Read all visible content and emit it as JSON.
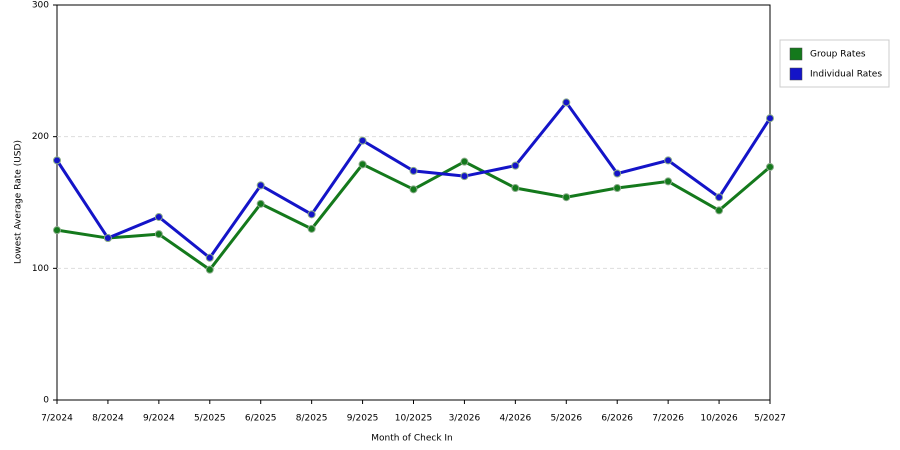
{
  "chart_data": {
    "type": "line",
    "x_label": "Month of Check In",
    "y_label": "Lowest Average Rate (USD)",
    "categories": [
      "7/2024",
      "8/2024",
      "9/2024",
      "5/2025",
      "6/2025",
      "8/2025",
      "9/2025",
      "10/2025",
      "3/2026",
      "4/2026",
      "5/2026",
      "6/2026",
      "7/2026",
      "10/2026",
      "5/2027"
    ],
    "series": [
      {
        "name": "Group Rates",
        "color": "#14791c",
        "values": [
          129,
          123,
          126,
          99,
          149,
          130,
          179,
          160,
          181,
          161,
          154,
          161,
          166,
          144,
          177
        ]
      },
      {
        "name": "Individual Rates",
        "color": "#1414c8",
        "values": [
          182,
          123,
          139,
          108,
          163,
          141,
          197,
          174,
          170,
          178,
          226,
          172,
          182,
          154,
          214
        ]
      }
    ],
    "ylim": [
      0,
      300
    ],
    "yticks": [
      0,
      100,
      200,
      300
    ],
    "grid": true
  }
}
